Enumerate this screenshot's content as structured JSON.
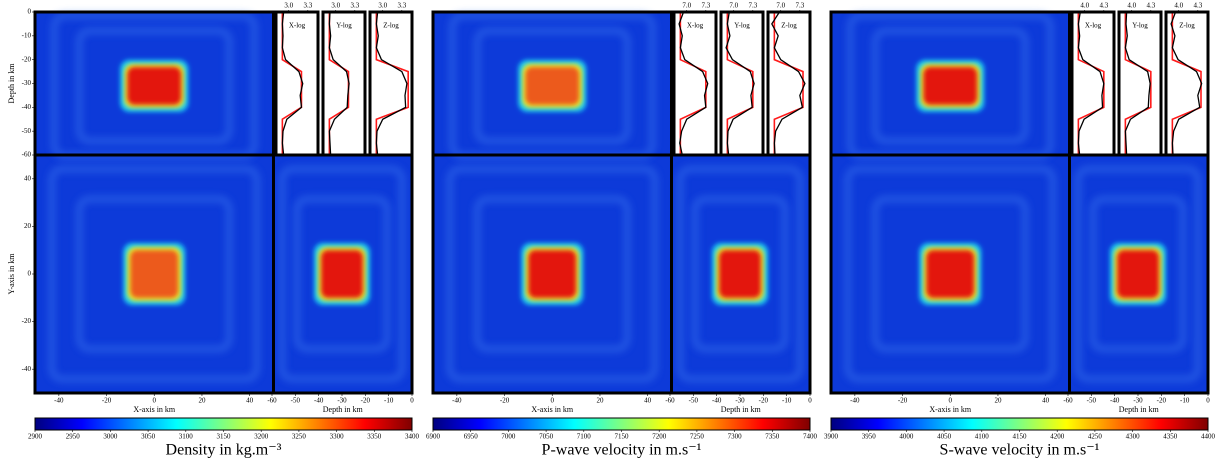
{
  "chart_data": [
    {
      "type": "heatmap",
      "top_label": "Depth in km",
      "ylabel": "Y-axis in km",
      "xlabel": "X-axis in km",
      "depth_label": "Depth in km",
      "xlim": [
        -50,
        50
      ],
      "xticks": [
        -40,
        -20,
        0,
        20,
        40
      ],
      "ylim": [
        -50,
        50
      ],
      "yticks": [
        40,
        20,
        0,
        -20,
        -40
      ],
      "zlim": [
        -60,
        0
      ],
      "zticks": [
        -60,
        -50,
        -40,
        -30,
        -20,
        -10,
        0
      ],
      "colorbar": {
        "label": "Density in kg.m⁻³",
        "lim": [
          2900,
          3400
        ],
        "ticks": [
          2900,
          2950,
          3000,
          3050,
          3100,
          3150,
          3200,
          3250,
          3300,
          3350,
          3400
        ]
      },
      "model_color": "#ff1a1a",
      "recovered_color": "#000000",
      "depth": [
        0,
        -5,
        -10,
        -15,
        -20,
        -25,
        -30,
        -35,
        -40,
        -45,
        -50,
        -55,
        -60
      ],
      "logs": [
        {
          "title": "X-log",
          "xlim": [
            2.8,
            3.46
          ],
          "xticks": [
            {
              "value": 3,
              "label": "3.0"
            },
            3.3
          ],
          "model": [
            2.9,
            2.9,
            2.9,
            2.9,
            2.9,
            3.2,
            3.2,
            3.2,
            3.2,
            2.9,
            2.9,
            2.9,
            2.9
          ],
          "recovered": [
            2.92,
            2.9,
            2.91,
            2.9,
            2.95,
            3.16,
            3.22,
            3.18,
            3.2,
            2.97,
            2.91,
            2.9,
            2.92
          ]
        },
        {
          "title": "Y-log",
          "xlim": [
            2.8,
            3.46
          ],
          "xticks": [
            {
              "value": 3,
              "label": "3.0"
            },
            3.3
          ],
          "model": [
            2.9,
            2.9,
            2.9,
            2.9,
            2.9,
            3.2,
            3.2,
            3.2,
            3.2,
            2.9,
            2.9,
            2.9,
            2.9
          ],
          "recovered": [
            2.91,
            2.9,
            2.92,
            2.9,
            2.96,
            3.17,
            3.21,
            3.19,
            3.18,
            2.98,
            2.9,
            2.91,
            2.92
          ]
        },
        {
          "title": "Z-log",
          "xlim": [
            2.8,
            3.46
          ],
          "xticks": [
            {
              "value": 3,
              "label": "3.0"
            },
            3.3
          ],
          "model": [
            2.9,
            2.9,
            2.9,
            2.9,
            2.9,
            3.4,
            3.4,
            3.4,
            3.4,
            2.9,
            2.9,
            2.9,
            2.9
          ],
          "recovered": [
            2.92,
            2.9,
            2.93,
            2.9,
            2.98,
            3.3,
            3.38,
            3.35,
            3.36,
            3.0,
            2.91,
            2.9,
            2.92
          ]
        }
      ]
    },
    {
      "type": "heatmap",
      "xlabel": "X-axis in km",
      "depth_label": "Depth in km",
      "xlim": [
        -50,
        50
      ],
      "xticks": [
        -40,
        -20,
        0,
        20,
        40
      ],
      "zlim": [
        -60,
        0
      ],
      "zticks": [
        -60,
        -50,
        -40,
        -30,
        -20,
        -10,
        0
      ],
      "colorbar": {
        "label": "P-wave velocity in m.s⁻¹",
        "lim": [
          6900,
          7400
        ],
        "ticks": [
          6900,
          6950,
          7000,
          7050,
          7100,
          7150,
          7200,
          7250,
          7300,
          7350,
          7400
        ]
      },
      "model_color": "#ff1a1a",
      "recovered_color": "#000000",
      "depth": [
        0,
        -5,
        -10,
        -15,
        -20,
        -25,
        -30,
        -35,
        -40,
        -45,
        -50,
        -55,
        -60
      ],
      "logs": [
        {
          "title": "X-log",
          "xlim": [
            6.8,
            7.46
          ],
          "xticks": [
            {
              "value": 7,
              "label": "7.0"
            },
            7.3
          ],
          "model": [
            6.9,
            6.9,
            6.9,
            6.9,
            6.9,
            7.3,
            7.3,
            7.3,
            7.3,
            6.9,
            6.9,
            6.9,
            6.9
          ],
          "recovered": [
            6.95,
            6.88,
            6.93,
            6.9,
            6.97,
            7.25,
            7.33,
            7.28,
            7.3,
            7.0,
            6.92,
            6.89,
            6.93
          ]
        },
        {
          "title": "Y-log",
          "xlim": [
            6.8,
            7.46
          ],
          "xticks": [
            {
              "value": 7,
              "label": "7.0"
            },
            7.3
          ],
          "model": [
            6.9,
            6.9,
            6.9,
            6.9,
            6.9,
            7.3,
            7.3,
            7.3,
            7.3,
            6.9,
            6.9,
            6.9,
            6.9
          ],
          "recovered": [
            6.93,
            6.9,
            6.94,
            6.88,
            6.98,
            7.26,
            7.32,
            7.27,
            7.29,
            6.99,
            6.91,
            6.9,
            6.92
          ]
        },
        {
          "title": "Z-log",
          "xlim": [
            6.8,
            7.46
          ],
          "xticks": [
            {
              "value": 7,
              "label": "7.0"
            },
            7.3
          ],
          "model": [
            6.9,
            6.9,
            6.9,
            6.9,
            6.9,
            7.35,
            7.35,
            7.35,
            7.35,
            6.9,
            6.9,
            6.9,
            6.9
          ],
          "recovered": [
            6.98,
            6.86,
            6.96,
            6.9,
            7.0,
            7.28,
            7.38,
            7.3,
            7.34,
            7.02,
            6.92,
            6.9,
            6.91
          ]
        }
      ]
    },
    {
      "type": "heatmap",
      "xlabel": "X-axis in km",
      "depth_label": "Depth in km",
      "xlim": [
        -50,
        50
      ],
      "xticks": [
        -40,
        -20,
        0,
        20,
        40
      ],
      "zlim": [
        -60,
        0
      ],
      "zticks": [
        -60,
        -50,
        -40,
        -30,
        -20,
        -10,
        0
      ],
      "colorbar": {
        "label": "S-wave velocity in m.s⁻¹",
        "lim": [
          3900,
          4400
        ],
        "ticks": [
          3900,
          3950,
          4000,
          4050,
          4100,
          4150,
          4200,
          4250,
          4300,
          4350,
          4400
        ]
      },
      "model_color": "#ff1a1a",
      "recovered_color": "#000000",
      "depth": [
        0,
        -5,
        -10,
        -15,
        -20,
        -25,
        -30,
        -35,
        -40,
        -45,
        -50,
        -55,
        -60
      ],
      "logs": [
        {
          "title": "X-log",
          "xlim": [
            3.8,
            4.46
          ],
          "xticks": [
            {
              "value": 4,
              "label": "4.0"
            },
            4.3
          ],
          "model": [
            3.9,
            3.9,
            3.9,
            3.9,
            3.9,
            4.3,
            4.3,
            4.3,
            4.3,
            3.9,
            3.9,
            3.9,
            3.9
          ],
          "recovered": [
            3.93,
            3.9,
            3.92,
            3.9,
            3.97,
            4.24,
            4.3,
            4.27,
            4.28,
            3.99,
            3.91,
            3.9,
            3.92
          ]
        },
        {
          "title": "Y-log",
          "xlim": [
            3.8,
            4.46
          ],
          "xticks": [
            {
              "value": 4,
              "label": "4.0"
            },
            4.3
          ],
          "model": [
            3.9,
            3.9,
            3.9,
            3.9,
            3.9,
            4.3,
            4.3,
            4.3,
            4.3,
            3.9,
            3.9,
            3.9,
            3.9
          ],
          "recovered": [
            3.92,
            3.91,
            3.93,
            3.9,
            3.96,
            4.25,
            4.29,
            4.27,
            4.26,
            3.98,
            3.9,
            3.91,
            3.92
          ]
        },
        {
          "title": "Z-log",
          "xlim": [
            3.8,
            4.46
          ],
          "xticks": [
            {
              "value": 4,
              "label": "4.0"
            },
            4.3
          ],
          "model": [
            3.9,
            3.9,
            3.9,
            3.9,
            3.9,
            4.35,
            4.35,
            4.35,
            4.35,
            3.9,
            3.9,
            3.9,
            3.9
          ],
          "recovered": [
            3.95,
            3.88,
            3.94,
            3.9,
            3.99,
            4.28,
            4.36,
            4.3,
            4.33,
            4.0,
            3.92,
            3.9,
            3.91
          ]
        }
      ]
    }
  ]
}
